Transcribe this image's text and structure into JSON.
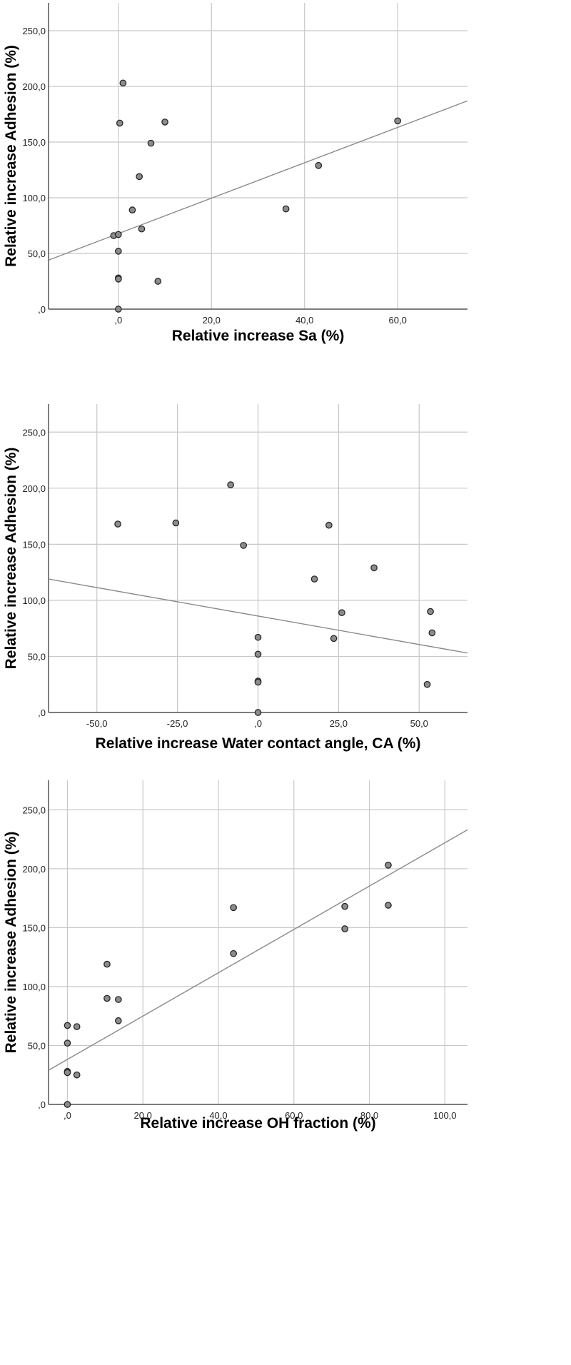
{
  "chart_data": [
    {
      "type": "scatter",
      "title": "",
      "xlabel": "Relative increase Sa (%)",
      "ylabel": "Relative increase Adhesion (%)",
      "xlim": [
        -15,
        75
      ],
      "ylim": [
        0,
        275
      ],
      "xticks": [
        0,
        20,
        40,
        60
      ],
      "xtick_labels": [
        ",0",
        "20,0",
        "40,0",
        "60,0"
      ],
      "yticks": [
        0,
        50,
        100,
        150,
        200,
        250
      ],
      "ytick_labels": [
        ",0",
        "50,0",
        "100,0",
        "150,0",
        "200,0",
        "250,0"
      ],
      "grid": true,
      "fit_line": {
        "x": [
          -15,
          75
        ],
        "y": [
          44,
          187
        ]
      },
      "points": [
        {
          "x": 1,
          "y": 203
        },
        {
          "x": 0.3,
          "y": 167
        },
        {
          "x": 10,
          "y": 168
        },
        {
          "x": 7,
          "y": 149
        },
        {
          "x": 4.5,
          "y": 119
        },
        {
          "x": 3,
          "y": 89
        },
        {
          "x": 5,
          "y": 72
        },
        {
          "x": -1,
          "y": 66
        },
        {
          "x": 0,
          "y": 67
        },
        {
          "x": 0,
          "y": 52
        },
        {
          "x": 0,
          "y": 28
        },
        {
          "x": 0,
          "y": 27
        },
        {
          "x": 8.5,
          "y": 25
        },
        {
          "x": 0,
          "y": 0
        },
        {
          "x": 36,
          "y": 90
        },
        {
          "x": 43,
          "y": 129
        },
        {
          "x": 60,
          "y": 169
        }
      ]
    },
    {
      "type": "scatter",
      "title": "",
      "xlabel": "Relative increase Water contact angle, CA (%)",
      "ylabel": "Relative increase Adhesion (%)",
      "xlim": [
        -65,
        65
      ],
      "ylim": [
        0,
        275
      ],
      "xticks": [
        -50,
        -25,
        0,
        25,
        50
      ],
      "xtick_labels": [
        "-50,0",
        "-25,0",
        ",0",
        "25,0",
        "50,0"
      ],
      "yticks": [
        0,
        50,
        100,
        150,
        200,
        250
      ],
      "ytick_labels": [
        ",0",
        "50,0",
        "100,0",
        "150,0",
        "200,0",
        "250,0"
      ],
      "grid": true,
      "fit_line": {
        "x": [
          -65,
          65
        ],
        "y": [
          119,
          53
        ]
      },
      "points": [
        {
          "x": -43.5,
          "y": 168
        },
        {
          "x": -25.5,
          "y": 169
        },
        {
          "x": -8.5,
          "y": 203
        },
        {
          "x": -4.5,
          "y": 149
        },
        {
          "x": 22,
          "y": 167
        },
        {
          "x": 17.5,
          "y": 119
        },
        {
          "x": 36,
          "y": 129
        },
        {
          "x": 26,
          "y": 89
        },
        {
          "x": 23.5,
          "y": 66
        },
        {
          "x": 53.5,
          "y": 90
        },
        {
          "x": 54,
          "y": 71
        },
        {
          "x": 52.5,
          "y": 25
        },
        {
          "x": 0,
          "y": 67
        },
        {
          "x": 0,
          "y": 52
        },
        {
          "x": 0,
          "y": 28
        },
        {
          "x": 0,
          "y": 27
        },
        {
          "x": 0,
          "y": 0
        }
      ]
    },
    {
      "type": "scatter",
      "title": "",
      "xlabel": "Relative increase OH fraction (%)",
      "ylabel": "Relative increase Adhesion (%)",
      "xlim": [
        -5,
        106
      ],
      "ylim": [
        0,
        275
      ],
      "xticks": [
        0,
        20,
        40,
        60,
        80,
        100
      ],
      "xtick_labels": [
        ",0",
        "20,0",
        "40,0",
        "60,0",
        "80,0",
        "100,0"
      ],
      "yticks": [
        0,
        50,
        100,
        150,
        200,
        250
      ],
      "ytick_labels": [
        ",0",
        "50,0",
        "100,0",
        "150,0",
        "200,0",
        "250,0"
      ],
      "grid": true,
      "fit_line": {
        "x": [
          -5,
          106
        ],
        "y": [
          29,
          233
        ]
      },
      "points": [
        {
          "x": 0,
          "y": 67
        },
        {
          "x": 0,
          "y": 52
        },
        {
          "x": 0,
          "y": 28
        },
        {
          "x": 0,
          "y": 27
        },
        {
          "x": 0,
          "y": 0
        },
        {
          "x": 2.5,
          "y": 66
        },
        {
          "x": 2.5,
          "y": 25
        },
        {
          "x": 10.5,
          "y": 119
        },
        {
          "x": 10.5,
          "y": 90
        },
        {
          "x": 13.5,
          "y": 89
        },
        {
          "x": 13.5,
          "y": 71
        },
        {
          "x": 44,
          "y": 167
        },
        {
          "x": 44,
          "y": 128
        },
        {
          "x": 73.5,
          "y": 168
        },
        {
          "x": 73.5,
          "y": 149
        },
        {
          "x": 85,
          "y": 203
        },
        {
          "x": 85,
          "y": 169
        }
      ]
    }
  ]
}
